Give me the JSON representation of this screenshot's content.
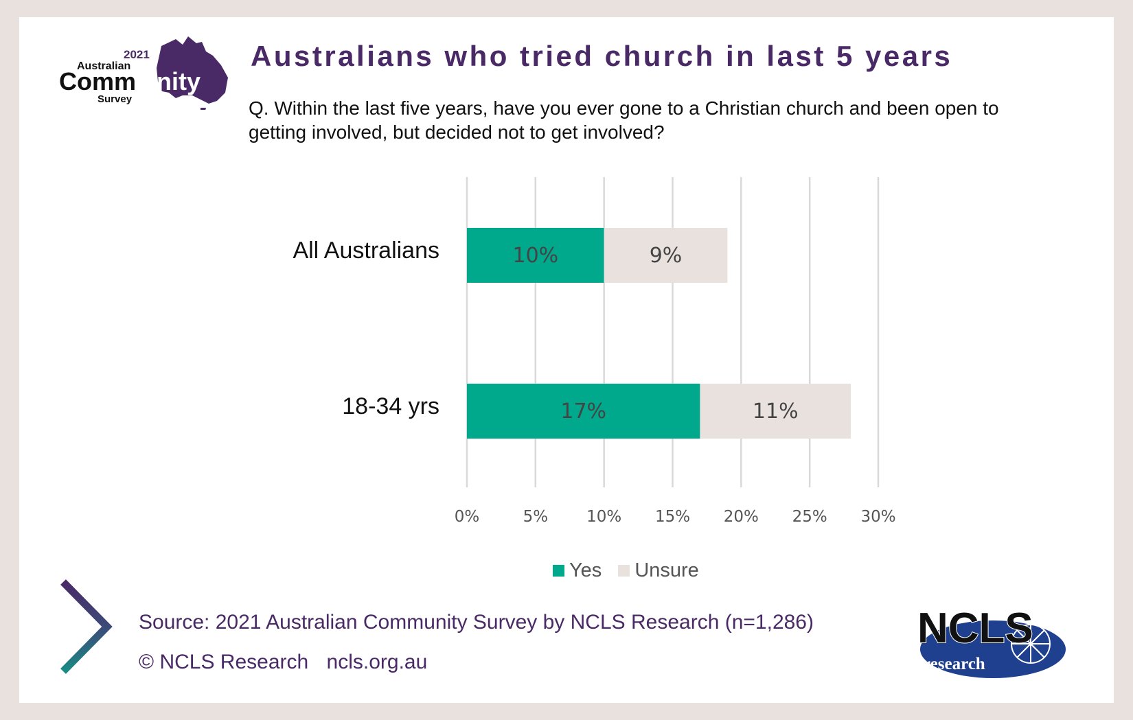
{
  "header": {
    "title": "Australians who tried church in last 5 years",
    "question": "Q. Within the last five years, have you ever gone to a Christian church and been open to getting involved, but decided not to get involved?"
  },
  "logos": {
    "acs": {
      "year": "2021",
      "line1": "Australian",
      "line2a": "Comm",
      "line2b": "unity",
      "line3": "Survey"
    },
    "ncls": {
      "main": "NCLS",
      "sub": "research"
    }
  },
  "legend": {
    "yes": "Yes",
    "unsure": "Unsure"
  },
  "footer": {
    "source": "Source: 2021 Australian Community Survey by NCLS Research (n=1,286)",
    "copyright": "© NCLS Research",
    "website": "ncls.org.au"
  },
  "colors": {
    "yes": "#00a88c",
    "unsure": "#e9e1de",
    "purple": "#4a2a66",
    "grid": "#d9d9d9"
  },
  "chart_data": {
    "type": "bar",
    "orientation": "horizontal",
    "stacked": true,
    "categories": [
      "All Australians",
      "18-34 yrs"
    ],
    "series": [
      {
        "name": "Yes",
        "values": [
          10,
          17
        ],
        "labels": [
          "10%",
          "17%"
        ]
      },
      {
        "name": "Unsure",
        "values": [
          9,
          11
        ],
        "labels": [
          "9%",
          "11%"
        ]
      }
    ],
    "xlim": [
      0,
      30
    ],
    "xticks": [
      "0%",
      "5%",
      "10%",
      "15%",
      "20%",
      "25%",
      "30%"
    ],
    "grid": true,
    "legend_position": "bottom"
  }
}
